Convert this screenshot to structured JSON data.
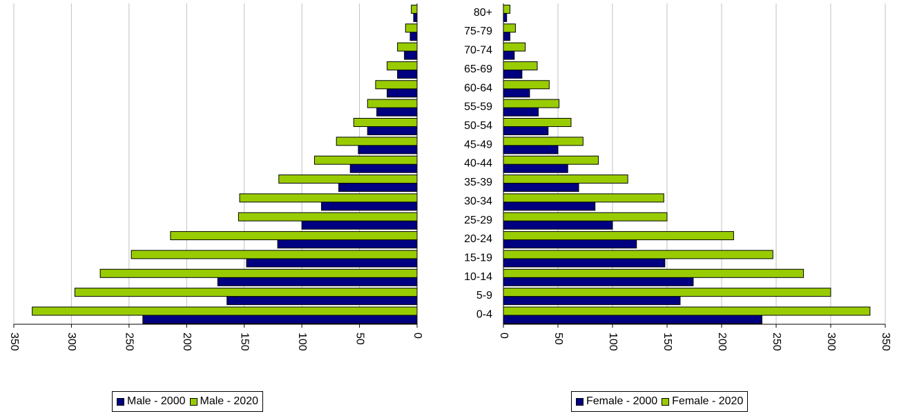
{
  "chart_data": [
    {
      "type": "bar",
      "orientation": "horizontal",
      "direction": "reversed",
      "side": "left",
      "categories": [
        "0-4",
        "5-9",
        "10-14",
        "15-19",
        "20-24",
        "25-29",
        "30-34",
        "35-39",
        "40-44",
        "45-49",
        "50-54",
        "55-59",
        "60-64",
        "65-69",
        "70-74",
        "75-79",
        "80+"
      ],
      "series": [
        {
          "name": "Male - 2000",
          "color": "#000080",
          "values": [
            238,
            165,
            173,
            148,
            121,
            100,
            83,
            68,
            58,
            51,
            43,
            35,
            26,
            17,
            11,
            6,
            3
          ]
        },
        {
          "name": "Male - 2020",
          "color": "#99cc00",
          "values": [
            334,
            297,
            275,
            248,
            214,
            155,
            154,
            120,
            89,
            70,
            55,
            43,
            36,
            26,
            17,
            10,
            5
          ]
        }
      ],
      "xlim": [
        0,
        350
      ],
      "xticks": [
        "350",
        "300",
        "250",
        "200",
        "150",
        "100",
        "50",
        "0"
      ],
      "grid": true
    },
    {
      "type": "bar",
      "orientation": "horizontal",
      "side": "right",
      "categories": [
        "0-4",
        "5-9",
        "10-14",
        "15-19",
        "20-24",
        "25-29",
        "30-34",
        "35-39",
        "40-44",
        "45-49",
        "50-54",
        "55-59",
        "60-64",
        "65-69",
        "70-74",
        "75-79",
        "80+"
      ],
      "series": [
        {
          "name": "Female - 2000",
          "color": "#000080",
          "values": [
            237,
            162,
            174,
            148,
            122,
            100,
            84,
            69,
            59,
            50,
            41,
            32,
            24,
            17,
            10,
            6,
            3
          ]
        },
        {
          "name": "Female - 2020",
          "color": "#99cc00",
          "values": [
            336,
            300,
            275,
            247,
            211,
            150,
            147,
            114,
            87,
            73,
            62,
            51,
            42,
            31,
            20,
            11,
            6
          ]
        }
      ],
      "xlim": [
        0,
        350
      ],
      "xticks": [
        "0",
        "50",
        "100",
        "150",
        "200",
        "250",
        "300",
        "350"
      ],
      "grid": true
    }
  ],
  "legends": {
    "left": [
      {
        "label": "Male - 2000",
        "color": "#000080"
      },
      {
        "label": "Male - 2020",
        "color": "#99cc00"
      }
    ],
    "right": [
      {
        "label": "Female - 2000",
        "color": "#000080"
      },
      {
        "label": "Female - 2020",
        "color": "#99cc00"
      }
    ]
  }
}
